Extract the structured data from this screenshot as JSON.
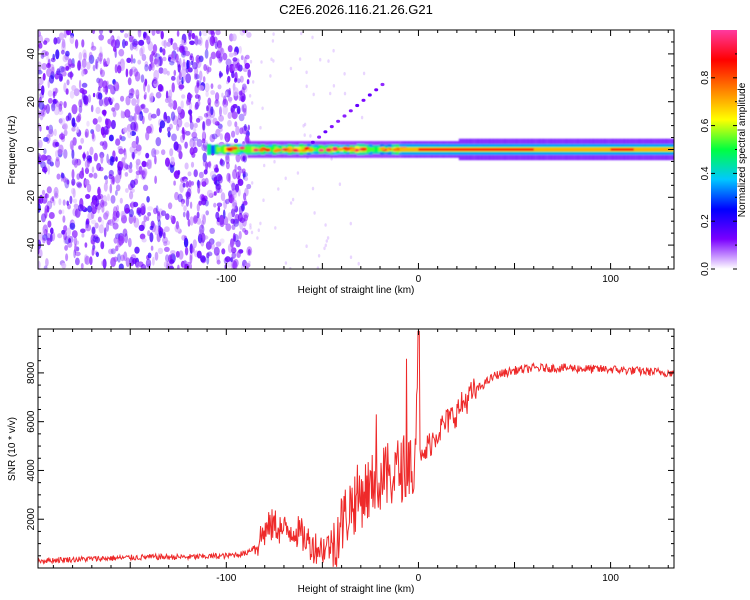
{
  "title": "C2E6.2026.116.21.26.G21",
  "chart_data": [
    {
      "type": "heatmap",
      "title": "C2E6.2026.116.21.26.G21",
      "xlabel": "Height of straight line (km)",
      "ylabel": "Frequency (Hz)",
      "xlim": [
        -198,
        133
      ],
      "ylim": [
        -50,
        50
      ],
      "xticks": [
        -100,
        0,
        100
      ],
      "xtick_labels": [
        "-100",
        "0",
        "100"
      ],
      "yticks": [
        -40,
        -20,
        0,
        20,
        40
      ],
      "ytick_labels": [
        "-40",
        "-20",
        "0",
        "20",
        "40"
      ],
      "colorbar": {
        "label": "Normalized spectral amplitude",
        "range": [
          0.0,
          1.0
        ],
        "ticks": [
          0.0,
          0.2,
          0.4,
          0.6,
          0.8
        ],
        "tick_labels": [
          "0.0",
          "0.2",
          "0.4",
          "0.6",
          "0.8"
        ],
        "colors": [
          "#ffffff",
          "#7a00ff",
          "#0000ff",
          "#00c8ff",
          "#00ff40",
          "#ffff00",
          "#ff8000",
          "#ff0000",
          "#ff3aa0"
        ]
      },
      "features": {
        "noise_region_x": [
          -198,
          -88
        ],
        "carrier_frequency_hz": 0,
        "strong_carrier_x": [
          -10,
          133
        ]
      }
    },
    {
      "type": "line",
      "title": "",
      "xlabel": "Height of straight line (km)",
      "ylabel": "SNR (10 * v/v)",
      "xlim": [
        -198,
        133
      ],
      "ylim": [
        0,
        9800
      ],
      "xticks": [
        -100,
        0,
        100
      ],
      "xtick_labels": [
        "-100",
        "0",
        "100"
      ],
      "yticks": [
        2000,
        4000,
        6000,
        8000
      ],
      "ytick_labels": [
        "2000",
        "4000",
        "6000",
        "8000"
      ],
      "series": [
        {
          "name": "SNR",
          "color": "#ee2a2a",
          "x": [
            -198,
            -180,
            -160,
            -140,
            -120,
            -100,
            -90,
            -85,
            -80,
            -75,
            -70,
            -65,
            -60,
            -55,
            -50,
            -45,
            -40,
            -35,
            -30,
            -25,
            -20,
            -15,
            -10,
            -5,
            -2,
            0,
            1,
            5,
            10,
            15,
            20,
            25,
            30,
            35,
            40,
            50,
            60,
            70,
            80,
            90,
            100,
            110,
            120,
            133
          ],
          "values": [
            300,
            350,
            400,
            450,
            450,
            500,
            600,
            900,
            1500,
            1800,
            1500,
            1600,
            1300,
            900,
            800,
            1000,
            1800,
            2600,
            3000,
            3300,
            3500,
            3800,
            4000,
            4300,
            4500,
            9700,
            4200,
            5000,
            5600,
            6000,
            6400,
            6900,
            7300,
            7600,
            7900,
            8100,
            8200,
            8200,
            8200,
            8150,
            8150,
            8100,
            8050,
            8000
          ]
        }
      ]
    }
  ]
}
